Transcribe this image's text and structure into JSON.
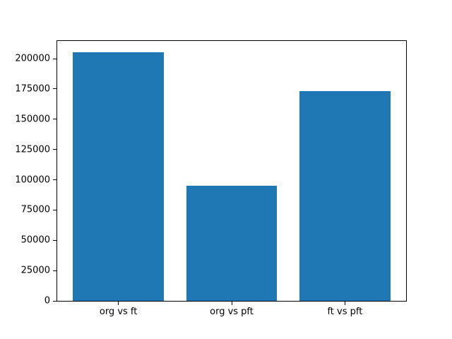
{
  "chart_data": {
    "type": "bar",
    "title": "",
    "xlabel": "",
    "ylabel": "",
    "categories": [
      "org vs ft",
      "org vs pft",
      "ft vs pft"
    ],
    "values": [
      205000,
      95000,
      173000
    ],
    "yticks": [
      0,
      25000,
      50000,
      75000,
      100000,
      125000,
      150000,
      175000,
      200000
    ],
    "ylim": [
      0,
      214600
    ],
    "xlim": [
      -0.54,
      2.54
    ],
    "bar_width": 0.8,
    "bar_color": "#1f77b4",
    "axis_color": "#000000",
    "text_color": "#000000",
    "grid": false,
    "legend": false
  }
}
